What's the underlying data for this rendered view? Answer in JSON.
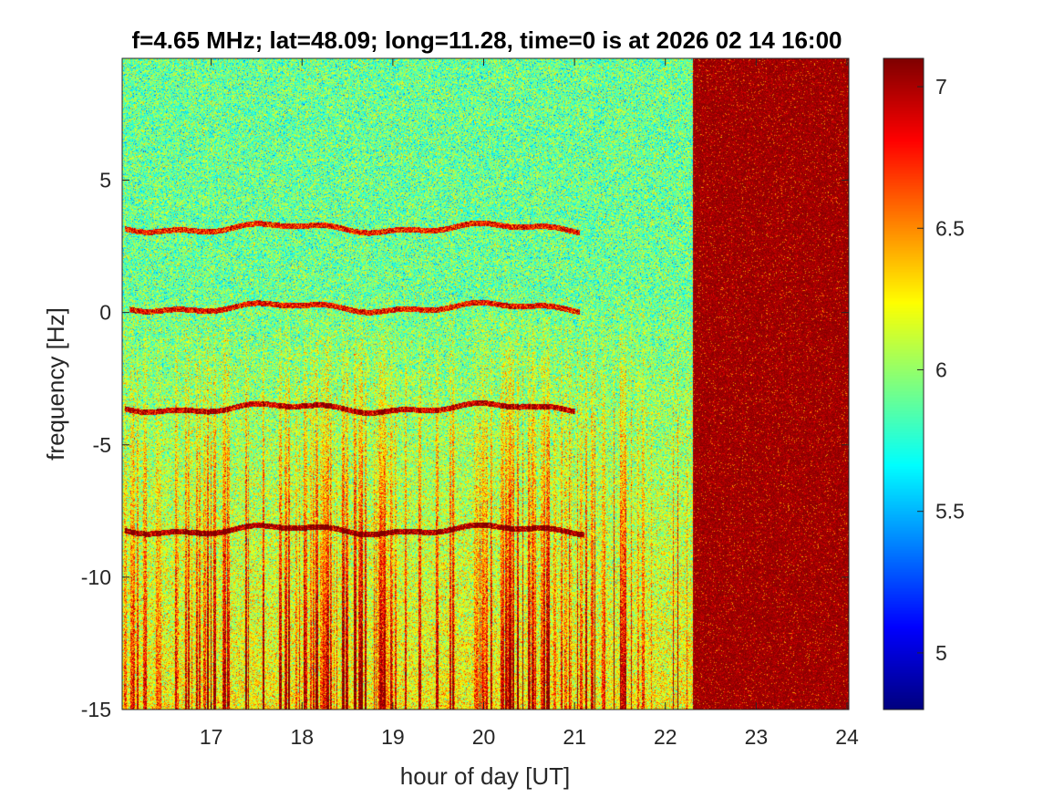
{
  "chart_data": {
    "type": "heatmap",
    "title": "f=4.65 MHz;  lat=48.09; long=11.28, time=0 is at 2026 02 14 16:00",
    "xlabel": "hour of day [UT]",
    "ylabel": "frequency [Hz]",
    "xlim": [
      16.02,
      24.02
    ],
    "ylim": [
      -15,
      9.6
    ],
    "x_ticks": [
      17,
      18,
      19,
      20,
      21,
      22,
      23,
      24
    ],
    "x_tick_labels": [
      "17",
      "18",
      "19",
      "20",
      "21",
      "22",
      "23",
      "24"
    ],
    "y_ticks": [
      -15,
      -10,
      -5,
      0,
      5
    ],
    "y_tick_labels": [
      "-15",
      "-10",
      "-5",
      "0",
      "5"
    ],
    "colorbar": {
      "colormap": "jet",
      "range": [
        4.8,
        7.1
      ],
      "ticks": [
        5,
        5.5,
        6,
        6.5,
        7
      ],
      "tick_labels": [
        "5",
        "5.5",
        "6",
        "6.5",
        "7"
      ]
    },
    "features": {
      "saturated_region_start_hour": 22.3,
      "background_level": 5.9,
      "saturated_level": 7.1,
      "signal_traces": [
        {
          "frequency_hz": 3.2,
          "start_hour": 16.05,
          "end_hour": 21.05
        },
        {
          "frequency_hz": 0.2,
          "start_hour": 16.1,
          "end_hour": 21.05
        },
        {
          "frequency_hz": -3.6,
          "start_hour": 16.05,
          "end_hour": 21.0
        },
        {
          "frequency_hz": -8.2,
          "start_hour": 16.05,
          "end_hour": 21.1
        }
      ]
    }
  }
}
